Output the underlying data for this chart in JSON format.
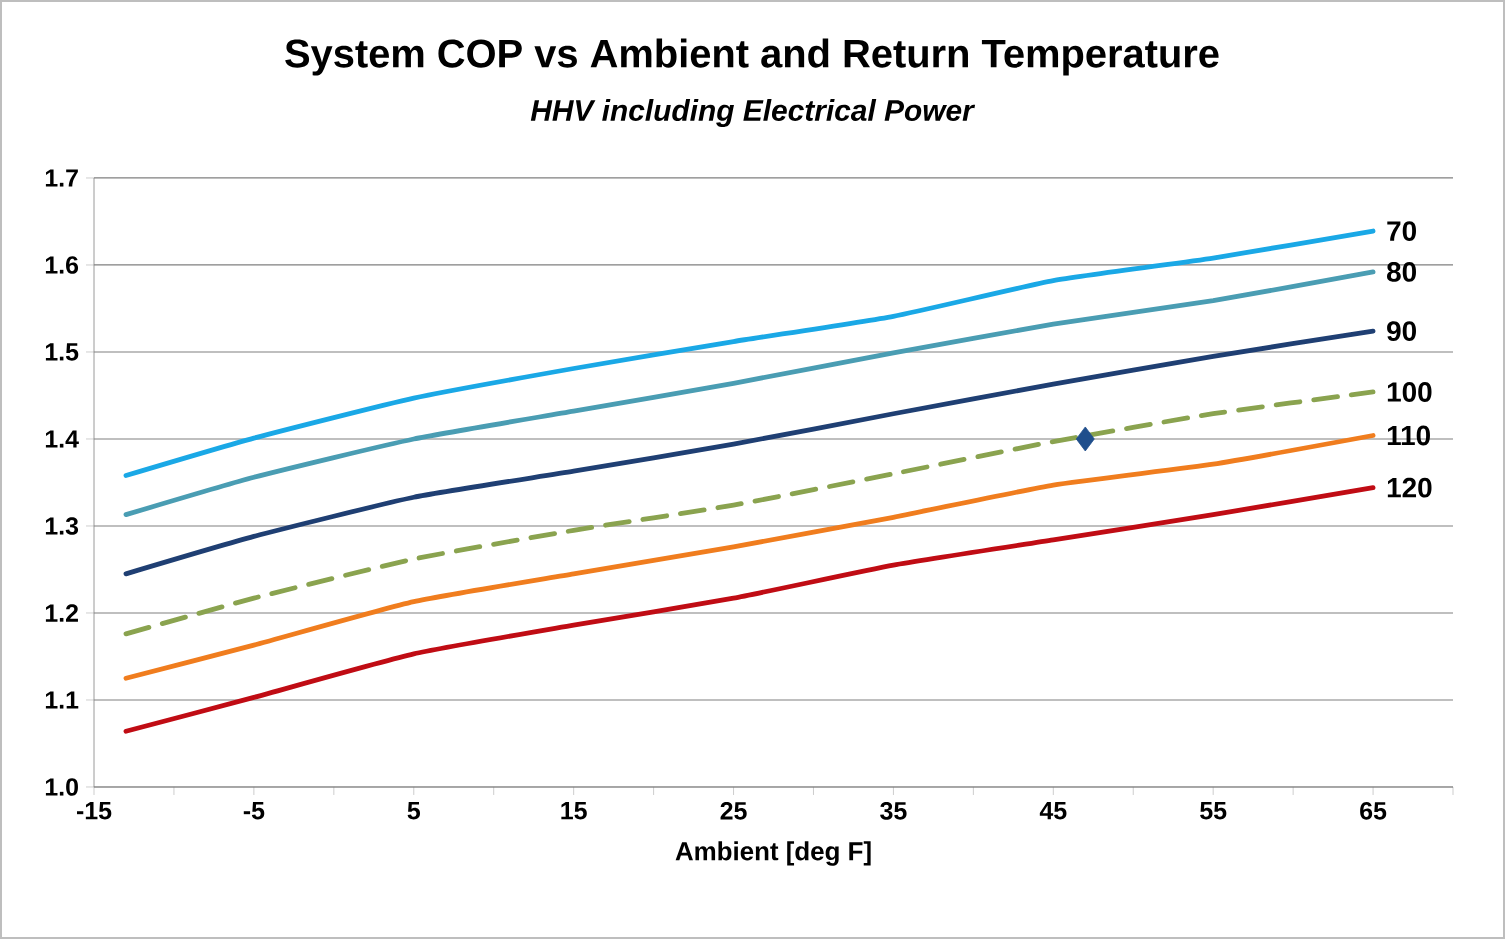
{
  "chart_data": {
    "type": "line",
    "title": "System COP vs Ambient and Return Temperature",
    "subtitle": "HHV including Electrical Power",
    "xlabel": "Ambient [deg F]",
    "x": [
      -13,
      -5,
      5,
      15,
      25,
      35,
      45,
      55,
      65
    ],
    "series": [
      {
        "name": "70",
        "color": "#1aa8e6",
        "values": [
          1.358,
          1.401,
          1.447,
          1.481,
          1.512,
          1.541,
          1.582,
          1.608,
          1.639
        ]
      },
      {
        "name": "80",
        "color": "#4a9db3",
        "values": [
          1.313,
          1.356,
          1.4,
          1.432,
          1.464,
          1.499,
          1.532,
          1.559,
          1.592
        ]
      },
      {
        "name": "90",
        "color": "#1f3f73",
        "values": [
          1.245,
          1.288,
          1.333,
          1.363,
          1.394,
          1.429,
          1.463,
          1.495,
          1.524
        ]
      },
      {
        "name": "100",
        "color": "#8aa34f",
        "line_style": "dashed",
        "values": [
          1.176,
          1.217,
          1.262,
          1.295,
          1.324,
          1.36,
          1.397,
          1.429,
          1.454
        ]
      },
      {
        "name": "110",
        "color": "#f07d1e",
        "values": [
          1.125,
          1.163,
          1.213,
          1.245,
          1.276,
          1.31,
          1.347,
          1.371,
          1.404
        ]
      },
      {
        "name": "120",
        "color": "#c00c14",
        "values": [
          1.064,
          1.103,
          1.153,
          1.186,
          1.217,
          1.255,
          1.284,
          1.313,
          1.344
        ]
      },
      {
        "type": "scatter",
        "marker": "diamond",
        "color": "#1f4e8c",
        "x": [
          47
        ],
        "values": [
          1.4
        ]
      }
    ],
    "xlim": [
      -15,
      70
    ],
    "ylim": [
      1.0,
      1.7
    ],
    "xticks": [
      -15,
      {
        "value": -10,
        "label": null
      },
      -5,
      {
        "value": 0,
        "label": null
      },
      5,
      {
        "value": 10,
        "label": null
      },
      15,
      {
        "value": 20,
        "label": null
      },
      25,
      {
        "value": 30,
        "label": null
      },
      35,
      {
        "value": 40,
        "label": null
      },
      45,
      {
        "value": 50,
        "label": null
      },
      55,
      {
        "value": 60,
        "label": null
      },
      65,
      {
        "value": 70,
        "label": null
      }
    ],
    "yticks": [
      {
        "value": 1.0,
        "label": "1.0"
      },
      1.1,
      1.2,
      1.3,
      1.4,
      1.5,
      1.6,
      1.7
    ],
    "grid": "y",
    "marker": "none",
    "line_style": "solid"
  }
}
